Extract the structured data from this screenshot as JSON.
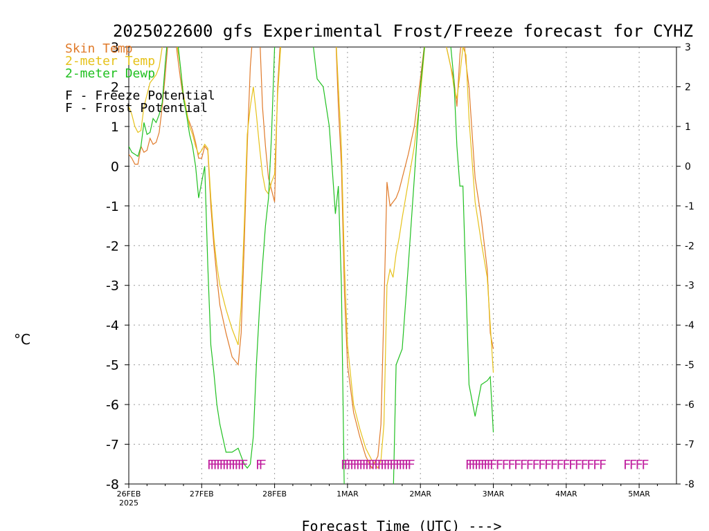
{
  "chart_data": {
    "type": "line",
    "title": "2025022600 gfs Experimental Frost/Freeze forecast for CYHZ",
    "xlabel": "Forecast Time (UTC) --->",
    "ylabel": "°C",
    "ylim": [
      -8,
      3
    ],
    "y_ticks": [
      -8,
      -7,
      -6,
      -5,
      -4,
      -3,
      -2,
      -1,
      0,
      1,
      2,
      3
    ],
    "y_tick_labels": [
      "-8",
      "-7",
      "-6",
      "-5",
      "-4",
      "-3",
      "-2",
      "-1",
      "0",
      "1",
      "2",
      "3"
    ],
    "xlim": [
      0,
      180
    ],
    "x_ticks": [
      {
        "t": 0,
        "label": "26FEB",
        "sub": "2025"
      },
      {
        "t": 24,
        "label": "27FEB",
        "sub": ""
      },
      {
        "t": 48,
        "label": "28FEB",
        "sub": ""
      },
      {
        "t": 72,
        "label": "1MAR",
        "sub": ""
      },
      {
        "t": 96,
        "label": "2MAR",
        "sub": ""
      },
      {
        "t": 120,
        "label": "3MAR",
        "sub": ""
      },
      {
        "t": 144,
        "label": "4MAR",
        "sub": ""
      },
      {
        "t": 168,
        "label": "5MAR",
        "sub": ""
      }
    ],
    "x_unit": "hours after 2025-02-26 00 UTC",
    "grid": true,
    "legend": {
      "placement": "top-left",
      "entries": [
        {
          "text": "Skin Temp",
          "color": "#e07a2a"
        },
        {
          "text": "2-meter Temp",
          "color": "#e6c21a"
        },
        {
          "text": "2-meter Dewp",
          "color": "#20c020"
        }
      ],
      "potential": [
        {
          "text": "F - Freeze Potential",
          "color": "#c0209f"
        },
        {
          "text": "F - Frost Potential",
          "color": "#4a4ae0"
        }
      ]
    },
    "series": [
      {
        "name": "Skin Temp",
        "color": "#e07a2a",
        "x": [
          0,
          1,
          2,
          3,
          4,
          5,
          6,
          7,
          8,
          9,
          10,
          11,
          12,
          13,
          14,
          15,
          16,
          17,
          18,
          19,
          20,
          21,
          22,
          23,
          24,
          25,
          26,
          27,
          28,
          29,
          30,
          32,
          34,
          36,
          37,
          38,
          39,
          40,
          41,
          42,
          43,
          44,
          45,
          46,
          47,
          48,
          49,
          50,
          52,
          54,
          56,
          58,
          60,
          62,
          64,
          66,
          68,
          69,
          70,
          71,
          72,
          74,
          76,
          78,
          80,
          82,
          83,
          84,
          85,
          86,
          87,
          88,
          89,
          90,
          92,
          94,
          96,
          98,
          100,
          102,
          104,
          106,
          107,
          108,
          109,
          110,
          111,
          112,
          114,
          116,
          118,
          119,
          120
        ],
        "y": [
          0.3,
          0.2,
          0.05,
          0.05,
          0.5,
          0.35,
          0.4,
          0.7,
          0.55,
          0.6,
          0.85,
          1.5,
          2.3,
          3.2,
          3.5,
          3.5,
          2.8,
          2.2,
          1.7,
          1.3,
          1.1,
          0.9,
          0.6,
          0.2,
          0.2,
          0.5,
          0.4,
          -1.0,
          -2.0,
          -2.8,
          -3.5,
          -4.2,
          -4.8,
          -5.0,
          -4.2,
          -2.0,
          0.5,
          2.5,
          3.5,
          3.5,
          3.5,
          1.5,
          0.5,
          -0.3,
          -0.6,
          -0.9,
          2.0,
          3.3,
          3.5,
          3.5,
          3.5,
          3.5,
          3.5,
          3.5,
          3.5,
          3.5,
          3.5,
          1.5,
          0.0,
          -3.2,
          -5.0,
          -6.2,
          -6.8,
          -7.3,
          -7.6,
          -7.3,
          -6.5,
          -3.6,
          -0.4,
          -1.0,
          -0.9,
          -0.8,
          -0.6,
          -0.3,
          0.3,
          1.0,
          2.2,
          3.5,
          3.5,
          3.5,
          3.2,
          2.5,
          2.2,
          1.5,
          2.8,
          3.5,
          2.6,
          2.0,
          -0.3,
          -1.3,
          -2.6,
          -4.2,
          -4.6
        ]
      },
      {
        "name": "2-meter Temp",
        "color": "#e6c21a",
        "x": [
          0,
          1,
          2,
          3,
          4,
          5,
          6,
          7,
          8,
          9,
          10,
          11,
          12,
          13,
          14,
          15,
          16,
          17,
          18,
          19,
          20,
          21,
          22,
          23,
          24,
          25,
          26,
          27,
          28,
          29,
          30,
          32,
          34,
          36,
          37,
          38,
          39,
          40,
          41,
          42,
          43,
          44,
          45,
          46,
          47,
          48,
          49,
          50,
          52,
          54,
          56,
          58,
          60,
          62,
          64,
          66,
          68,
          69,
          70,
          71,
          72,
          74,
          76,
          78,
          80,
          82,
          83,
          84,
          85,
          86,
          87,
          88,
          89,
          90,
          92,
          94,
          96,
          98,
          100,
          102,
          104,
          106,
          107,
          108,
          109,
          110,
          111,
          112,
          114,
          116,
          118,
          119,
          120
        ],
        "y": [
          1.5,
          1.3,
          1.0,
          0.85,
          0.9,
          1.5,
          1.8,
          2.1,
          2.2,
          2.3,
          2.5,
          3.0,
          3.5,
          3.5,
          3.5,
          3.5,
          3.0,
          2.5,
          1.8,
          1.4,
          1.0,
          0.8,
          0.5,
          0.3,
          0.4,
          0.55,
          0.45,
          -0.8,
          -1.8,
          -2.5,
          -3.0,
          -3.6,
          -4.1,
          -4.5,
          -3.5,
          -1.5,
          0.8,
          1.5,
          2.0,
          1.3,
          0.5,
          -0.2,
          -0.6,
          -0.7,
          -0.4,
          -0.2,
          1.8,
          3.0,
          3.5,
          3.5,
          3.5,
          3.5,
          3.5,
          3.5,
          3.5,
          3.5,
          3.5,
          2.0,
          0.5,
          -2.5,
          -4.5,
          -6.0,
          -6.6,
          -7.1,
          -7.4,
          -7.6,
          -7.4,
          -6.5,
          -3.0,
          -2.6,
          -2.8,
          -2.2,
          -1.8,
          -1.3,
          -0.4,
          0.5,
          1.8,
          3.5,
          3.5,
          3.5,
          3.2,
          2.5,
          2.0,
          1.7,
          2.3,
          3.0,
          2.8,
          1.2,
          -0.9,
          -1.9,
          -2.8,
          -4.0,
          -5.2
        ]
      },
      {
        "name": "2-meter Dewp",
        "color": "#20c020",
        "x": [
          0,
          1,
          2,
          3,
          4,
          5,
          6,
          7,
          8,
          9,
          10,
          11,
          12,
          13,
          14,
          15,
          16,
          17,
          18,
          19,
          20,
          21,
          22,
          23,
          24,
          25,
          26,
          27,
          28,
          29,
          30,
          32,
          34,
          36,
          37,
          38,
          39,
          40,
          41,
          42,
          43,
          44,
          45,
          46,
          47,
          48,
          49,
          50,
          52,
          54,
          56,
          58,
          60,
          62,
          64,
          66,
          68,
          69,
          70,
          71,
          72,
          74,
          76,
          78,
          80,
          82,
          83,
          84,
          85,
          86,
          87,
          88,
          89,
          90,
          92,
          94,
          96,
          98,
          100,
          102,
          104,
          106,
          107,
          108,
          109,
          110,
          111,
          112,
          114,
          116,
          118,
          119,
          120
        ],
        "y": [
          0.5,
          0.35,
          0.3,
          0.25,
          0.5,
          1.1,
          0.8,
          0.85,
          1.2,
          1.1,
          1.3,
          1.6,
          2.6,
          3.4,
          3.5,
          3.5,
          3.2,
          2.5,
          1.7,
          1.3,
          0.8,
          0.5,
          0.0,
          -0.8,
          -0.4,
          0.0,
          -2.5,
          -4.5,
          -5.2,
          -6.0,
          -6.5,
          -7.2,
          -7.2,
          -7.1,
          -7.3,
          -7.5,
          -7.6,
          -7.5,
          -6.8,
          -5.0,
          -3.6,
          -2.5,
          -1.5,
          -0.8,
          0.8,
          3.0,
          3.5,
          3.5,
          3.5,
          3.5,
          3.5,
          3.5,
          3.5,
          2.2,
          2.0,
          1.0,
          -1.2,
          -0.5,
          -3.0,
          -8.5,
          -8.5,
          -8.5,
          -8.5,
          -8.5,
          -8.5,
          -8.5,
          -8.5,
          -8.5,
          -8.5,
          -8.5,
          -8.5,
          -5.0,
          -4.8,
          -4.6,
          -2.5,
          -0.3,
          2.0,
          3.5,
          3.5,
          3.5,
          3.5,
          3.0,
          2.2,
          0.5,
          -0.5,
          -0.5,
          -3.0,
          -5.5,
          -6.3,
          -5.5,
          -5.4,
          -5.3,
          -6.7
        ]
      }
    ],
    "potential_marks": {
      "text": "F",
      "color": "#c0209f",
      "y": -7.5,
      "times": [
        27,
        28,
        29,
        30,
        31,
        32,
        33,
        34,
        35,
        36,
        37,
        38,
        43,
        44,
        71,
        72,
        73,
        74,
        75,
        76,
        77,
        78,
        79,
        80,
        81,
        82,
        83,
        84,
        85,
        86,
        87,
        88,
        89,
        90,
        91,
        92,
        93,
        112,
        113,
        114,
        115,
        116,
        117,
        118,
        119,
        120,
        122,
        124,
        126,
        128,
        130,
        132,
        134,
        136,
        138,
        140,
        142,
        144,
        146,
        148,
        150,
        152,
        154,
        156,
        164,
        166,
        168,
        170
      ]
    }
  }
}
